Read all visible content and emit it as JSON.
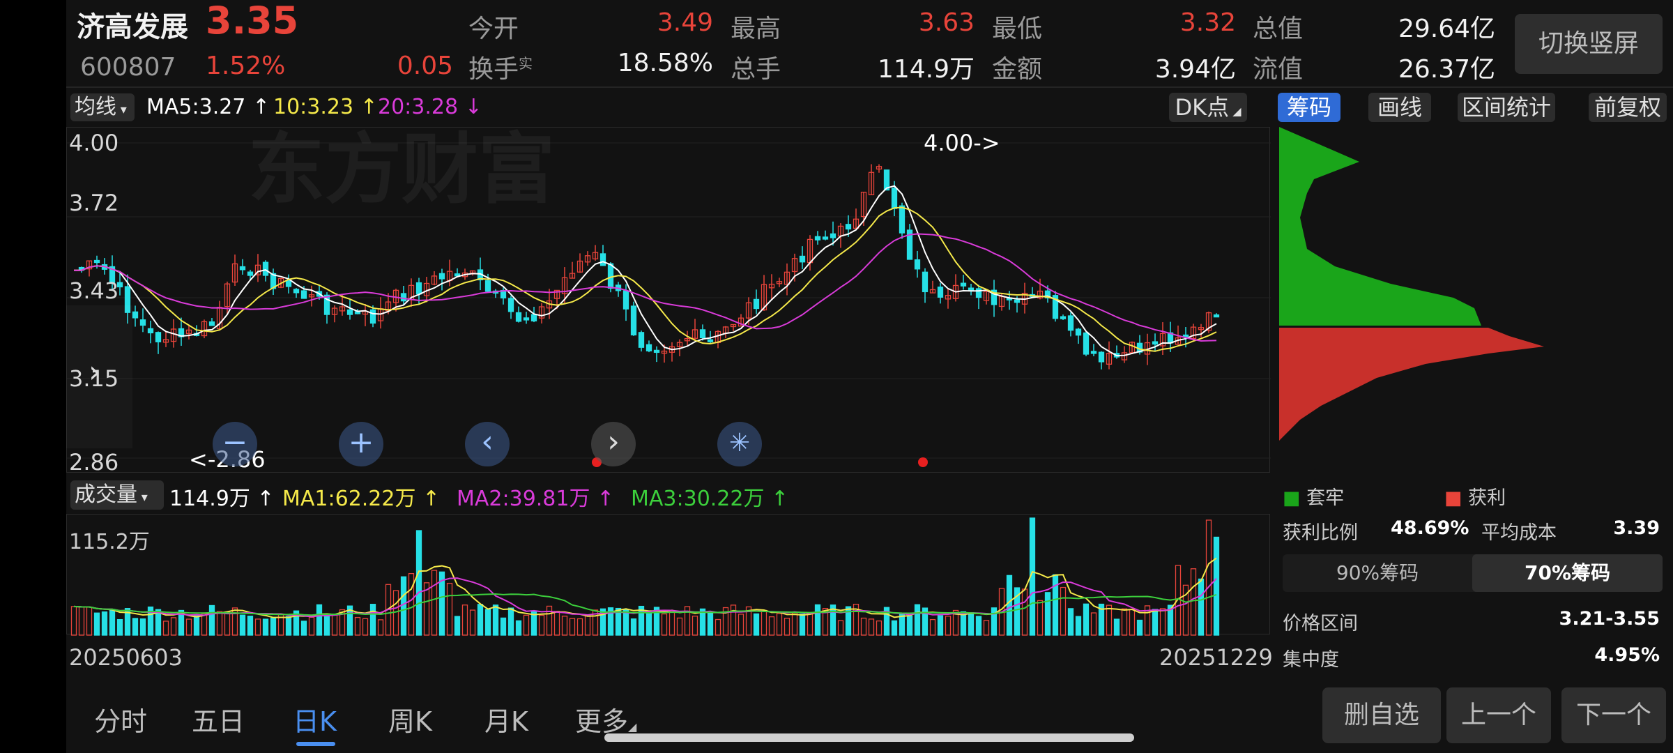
{
  "stock": {
    "name": "济高发展",
    "price": "3.35",
    "code": "600807",
    "change_pct": "1.52%",
    "change_amt": "0.05"
  },
  "quote": {
    "open_label": "今开",
    "open_value": "3.49",
    "high_label": "最高",
    "high_value": "3.63",
    "low_label": "最低",
    "low_value": "3.32",
    "mktcap_label": "总值",
    "mktcap_value": "29.64亿",
    "turnover_label": "换手",
    "turnover_sup": "实",
    "turnover_value": "18.58%",
    "volume_label": "总手",
    "volume_value": "114.9万",
    "amount_label": "金额",
    "amount_value": "3.94亿",
    "float_label": "流值",
    "float_value": "26.37亿"
  },
  "toolbar": {
    "switch_label": "切换竖屏",
    "ma_selector": "均线",
    "ma5": "MA5:3.27",
    "ma10": "10:3.23",
    "ma20": "20:3.28",
    "dk_label": "DK点",
    "chips_label": "筹码",
    "draw_label": "画线",
    "range_label": "区间统计",
    "adjust_label": "前复权"
  },
  "price_axis": [
    "4.00",
    "3.72",
    "3.43",
    "3.15",
    "2.86"
  ],
  "annotations": {
    "high_marker": "4.00->",
    "low_marker": "<-2.86"
  },
  "volume_bar": {
    "selector": "成交量",
    "current": "114.9万",
    "ma1": "MA1:62.22万",
    "ma2": "MA2:39.81万",
    "ma3": "MA3:30.22万",
    "axis_max": "115.2万"
  },
  "dates": {
    "start": "20250603",
    "end": "20251229"
  },
  "chips": {
    "legend_trapped": "套牢",
    "legend_profit": "获利",
    "profit_ratio_label": "获利比例",
    "profit_ratio_value": "48.69%",
    "avg_cost_label": "平均成本",
    "avg_cost_value": "3.39",
    "tab_90": "90%筹码",
    "tab_70": "70%筹码",
    "range_label": "价格区间",
    "range_value": "3.21-3.55",
    "concentration_label": "集中度",
    "concentration_value": "4.95%"
  },
  "tabs": [
    "分时",
    "五日",
    "日K",
    "周K",
    "月K",
    "更多"
  ],
  "actions": {
    "remove": "删自选",
    "prev": "上一个",
    "next": "下一个"
  },
  "colors": {
    "up": "#e8443a",
    "down": "#26e0e6",
    "ma5": "#ffffff",
    "ma10": "#f5e94a",
    "ma20": "#d93bd9",
    "ma3": "#3ccf3c",
    "accent": "#2f6bd6"
  }
}
